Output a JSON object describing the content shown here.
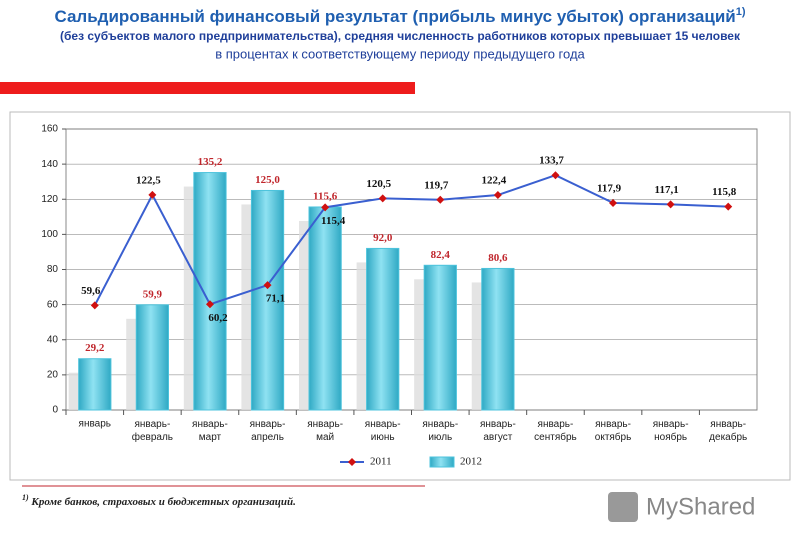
{
  "title": "Сальдированный финансовый результат (прибыль минус убыток) организаций",
  "title_note": "1)",
  "subtitle": "(без субъектов малого предпринимательства), средняя численность работников которых превышает 15 человек",
  "subtitle2": "в процентах к соответствующему периоду предыдущего года",
  "chart_data": {
    "type": "bar",
    "categories": [
      "январь",
      "январь-февраль",
      "январь-март",
      "январь-апрель",
      "январь-май",
      "январь-июнь",
      "январь-июль",
      "январь-август",
      "январь-сентябрь",
      "январь-октябрь",
      "январь-ноябрь",
      "январь-декабрь"
    ],
    "series": [
      {
        "name": "2012",
        "type": "bar",
        "color": "#4cc3dc",
        "values": [
          29.2,
          59.9,
          135.2,
          125.0,
          115.6,
          92.0,
          82.4,
          80.6,
          null,
          null,
          null,
          null
        ],
        "value_labels": [
          "29,2",
          "59,9",
          "135,2",
          "125,0",
          "115,6",
          "92,0",
          "82,4",
          "80,6",
          null,
          null,
          null,
          null
        ]
      },
      {
        "name": "2011",
        "type": "line",
        "color": "#3a5fd0",
        "marker_color": "#d01010",
        "values": [
          59.6,
          122.5,
          60.2,
          71.1,
          115.4,
          120.5,
          119.7,
          122.4,
          133.7,
          117.9,
          117.1,
          115.8
        ],
        "value_labels": [
          "59,6",
          "122,5",
          "60,2",
          "71,1",
          "115,4",
          "120,5",
          "119,7",
          "122,4",
          "133,7",
          "117,9",
          "117,1",
          "115,8"
        ]
      }
    ],
    "ylim": [
      0,
      160
    ],
    "yticks": [
      0,
      20,
      40,
      60,
      80,
      100,
      120,
      140,
      160
    ],
    "grid": true,
    "legend": "bottom"
  },
  "footnote": {
    "mark": "1)",
    "text": "Кроме банков, страховых и бюджетных организаций."
  },
  "watermark": "MyShared"
}
